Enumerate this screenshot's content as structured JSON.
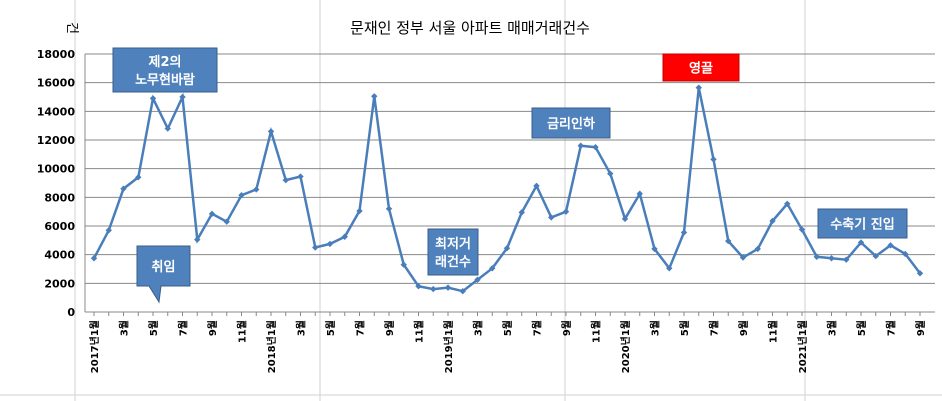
{
  "chart_data": {
    "type": "line",
    "title": "문재인 정부 서울 아파트 매매거래건수",
    "ylabel": "건",
    "ylim": [
      0,
      18000
    ],
    "yticks": [
      "0",
      "2000",
      "4000",
      "6000",
      "8000",
      "10000",
      "12000",
      "14000",
      "16000",
      "18000"
    ],
    "grid": true,
    "x_tick_labels": [
      "2017년1월",
      "3월",
      "5월",
      "7월",
      "9월",
      "11월",
      "2018년1월",
      "3월",
      "5월",
      "7월",
      "9월",
      "11월",
      "2019년1월",
      "3월",
      "5월",
      "7월",
      "9월",
      "11월",
      "2020년1월",
      "3월",
      "5월",
      "7월",
      "9월",
      "11월",
      "2021년1월",
      "3월",
      "5월",
      "7월",
      "9월"
    ],
    "series": [
      {
        "color": "#4a7ebb",
        "values": [
          3750,
          5700,
          8600,
          9400,
          14900,
          12800,
          15000,
          5050,
          6850,
          6300,
          8150,
          8550,
          12600,
          9200,
          9450,
          4500,
          4750,
          5250,
          7050,
          15050,
          7200,
          3300,
          1800,
          1600,
          1700,
          1450,
          2250,
          3050,
          4450,
          6950,
          8800,
          6600,
          7000,
          11600,
          11500,
          9650,
          6500,
          8250,
          4400,
          3050,
          5550,
          15650,
          10650,
          4950,
          3800,
          4400,
          6350,
          7550,
          5750,
          3850,
          3750,
          3650,
          4850,
          3900,
          4650,
          4050,
          2700
        ]
      }
    ],
    "annotations": [
      {
        "text_lines": [
          "제2의",
          "노무현바람"
        ],
        "style": "blue"
      },
      {
        "text_lines": [
          "취임"
        ],
        "style": "blue-callout"
      },
      {
        "text_lines": [
          "최저거",
          "래건수"
        ],
        "style": "blue"
      },
      {
        "text_lines": [
          "금리인하"
        ],
        "style": "blue"
      },
      {
        "text_lines": [
          "영끌"
        ],
        "style": "red"
      },
      {
        "text_lines": [
          "수축기 진입"
        ],
        "style": "blue"
      }
    ]
  }
}
